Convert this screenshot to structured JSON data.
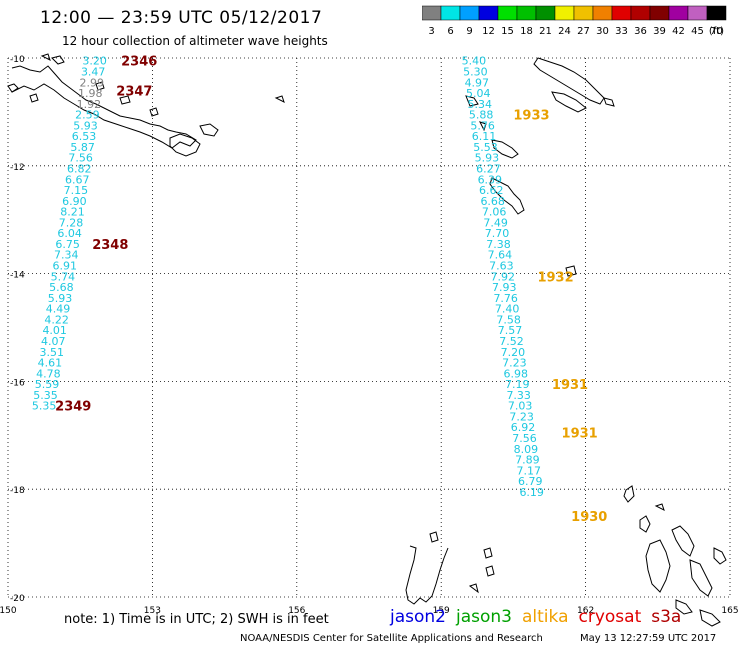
{
  "header": {
    "title": "12:00 — 23:59 UTC 05/12/2017",
    "subtitle": "12 hour collection of altimeter wave heights"
  },
  "legend": {
    "unit": "(ft)",
    "bins": [
      {
        "label": "3",
        "color": "#808080"
      },
      {
        "label": "6",
        "color": "#00e5e5"
      },
      {
        "label": "9",
        "color": "#00a0ff"
      },
      {
        "label": "12",
        "color": "#0000e0"
      },
      {
        "label": "15",
        "color": "#00e000"
      },
      {
        "label": "18",
        "color": "#00c000"
      },
      {
        "label": "21",
        "color": "#009000"
      },
      {
        "label": "24",
        "color": "#f0f000"
      },
      {
        "label": "27",
        "color": "#f0c000"
      },
      {
        "label": "30",
        "color": "#f08000"
      },
      {
        "label": "33",
        "color": "#e00000"
      },
      {
        "label": "36",
        "color": "#b00000"
      },
      {
        "label": "39",
        "color": "#800000"
      },
      {
        "label": "42",
        "color": "#a000a0"
      },
      {
        "label": "45",
        "color": "#c060c0"
      },
      {
        "label": "70",
        "color": "#000000"
      }
    ]
  },
  "map": {
    "lat_range": [
      -20,
      -10
    ],
    "lon_range": [
      150,
      165
    ],
    "lat_ticks": [
      "-10",
      "-12",
      "-14",
      "-16",
      "-18",
      "-20"
    ],
    "lon_ticks": [
      "150",
      "153",
      "156",
      "159",
      "162",
      "165"
    ],
    "colors": {
      "cyan": "#1ec8e0",
      "gray": "#808080",
      "time_dark": "#800000",
      "time_orange": "#e8a000"
    },
    "tracks": [
      {
        "id": "cryosat-track",
        "points": [
          {
            "lon": 151.8,
            "lat": -10.05,
            "v": "3.20",
            "c": "cyan"
          },
          {
            "lon": 151.77,
            "lat": -10.25,
            "v": "3.47",
            "c": "cyan"
          },
          {
            "lon": 151.74,
            "lat": -10.45,
            "v": "2.99",
            "c": "gray"
          },
          {
            "lon": 151.71,
            "lat": -10.65,
            "v": "1.98",
            "c": "gray"
          },
          {
            "lon": 151.68,
            "lat": -10.85,
            "v": "1.92",
            "c": "gray"
          },
          {
            "lon": 151.65,
            "lat": -11.05,
            "v": "2.59",
            "c": "cyan"
          },
          {
            "lon": 151.61,
            "lat": -11.25,
            "v": "5.93",
            "c": "cyan"
          },
          {
            "lon": 151.58,
            "lat": -11.45,
            "v": "6.53",
            "c": "cyan"
          },
          {
            "lon": 151.55,
            "lat": -11.65,
            "v": "5.87",
            "c": "cyan"
          },
          {
            "lon": 151.51,
            "lat": -11.85,
            "v": "7.56",
            "c": "cyan"
          },
          {
            "lon": 151.48,
            "lat": -12.05,
            "v": "6.82",
            "c": "cyan"
          },
          {
            "lon": 151.44,
            "lat": -12.25,
            "v": "6.67",
            "c": "cyan"
          },
          {
            "lon": 151.41,
            "lat": -12.45,
            "v": "7.15",
            "c": "cyan"
          },
          {
            "lon": 151.38,
            "lat": -12.65,
            "v": "6.90",
            "c": "cyan"
          },
          {
            "lon": 151.34,
            "lat": -12.85,
            "v": "8.21",
            "c": "cyan"
          },
          {
            "lon": 151.31,
            "lat": -13.05,
            "v": "7.28",
            "c": "cyan"
          },
          {
            "lon": 151.28,
            "lat": -13.25,
            "v": "6.04",
            "c": "cyan"
          },
          {
            "lon": 151.24,
            "lat": -13.45,
            "v": "6.75",
            "c": "cyan"
          },
          {
            "lon": 151.21,
            "lat": -13.65,
            "v": "7.34",
            "c": "cyan"
          },
          {
            "lon": 151.18,
            "lat": -13.85,
            "v": "6.91",
            "c": "cyan"
          },
          {
            "lon": 151.14,
            "lat": -14.05,
            "v": "5.74",
            "c": "cyan"
          },
          {
            "lon": 151.11,
            "lat": -14.25,
            "v": "5.68",
            "c": "cyan"
          },
          {
            "lon": 151.08,
            "lat": -14.45,
            "v": "5.93",
            "c": "cyan"
          },
          {
            "lon": 151.04,
            "lat": -14.65,
            "v": "4.49",
            "c": "cyan"
          },
          {
            "lon": 151.01,
            "lat": -14.85,
            "v": "4.22",
            "c": "cyan"
          },
          {
            "lon": 150.97,
            "lat": -15.05,
            "v": "4.01",
            "c": "cyan"
          },
          {
            "lon": 150.94,
            "lat": -15.25,
            "v": "4.07",
            "c": "cyan"
          },
          {
            "lon": 150.91,
            "lat": -15.45,
            "v": "3.51",
            "c": "cyan"
          },
          {
            "lon": 150.87,
            "lat": -15.65,
            "v": "4.61",
            "c": "cyan"
          },
          {
            "lon": 150.84,
            "lat": -15.85,
            "v": "4.78",
            "c": "cyan"
          },
          {
            "lon": 150.81,
            "lat": -16.05,
            "v": "5.59",
            "c": "cyan"
          },
          {
            "lon": 150.78,
            "lat": -16.25,
            "v": "5.35",
            "c": "cyan"
          },
          {
            "lon": 150.75,
            "lat": -16.45,
            "v": "5.35",
            "c": "cyan"
          }
        ]
      },
      {
        "id": "altika-track",
        "points": [
          {
            "lon": 159.68,
            "lat": -10.05,
            "v": "5.40",
            "c": "cyan"
          },
          {
            "lon": 159.71,
            "lat": -10.25,
            "v": "5.30",
            "c": "cyan"
          },
          {
            "lon": 159.74,
            "lat": -10.45,
            "v": "4.97",
            "c": "cyan"
          },
          {
            "lon": 159.77,
            "lat": -10.65,
            "v": "5.04",
            "c": "cyan"
          },
          {
            "lon": 159.8,
            "lat": -10.85,
            "v": "5.34",
            "c": "cyan"
          },
          {
            "lon": 159.83,
            "lat": -11.05,
            "v": "5.88",
            "c": "cyan"
          },
          {
            "lon": 159.86,
            "lat": -11.25,
            "v": "5.76",
            "c": "cyan"
          },
          {
            "lon": 159.89,
            "lat": -11.45,
            "v": "6.11",
            "c": "cyan"
          },
          {
            "lon": 159.92,
            "lat": -11.65,
            "v": "5.53",
            "c": "cyan"
          },
          {
            "lon": 159.95,
            "lat": -11.85,
            "v": "5.93",
            "c": "cyan"
          },
          {
            "lon": 159.98,
            "lat": -12.05,
            "v": "6.27",
            "c": "cyan"
          },
          {
            "lon": 160.01,
            "lat": -12.25,
            "v": "6.39",
            "c": "cyan"
          },
          {
            "lon": 160.04,
            "lat": -12.45,
            "v": "6.62",
            "c": "cyan"
          },
          {
            "lon": 160.07,
            "lat": -12.65,
            "v": "6.68",
            "c": "cyan"
          },
          {
            "lon": 160.1,
            "lat": -12.85,
            "v": "7.06",
            "c": "cyan"
          },
          {
            "lon": 160.13,
            "lat": -13.05,
            "v": "7.49",
            "c": "cyan"
          },
          {
            "lon": 160.16,
            "lat": -13.25,
            "v": "7.70",
            "c": "cyan"
          },
          {
            "lon": 160.19,
            "lat": -13.45,
            "v": "7.38",
            "c": "cyan"
          },
          {
            "lon": 160.22,
            "lat": -13.65,
            "v": "7.64",
            "c": "cyan"
          },
          {
            "lon": 160.25,
            "lat": -13.85,
            "v": "7.63",
            "c": "cyan"
          },
          {
            "lon": 160.28,
            "lat": -14.05,
            "v": "7.92",
            "c": "cyan"
          },
          {
            "lon": 160.31,
            "lat": -14.25,
            "v": "7.93",
            "c": "cyan"
          },
          {
            "lon": 160.34,
            "lat": -14.45,
            "v": "7.76",
            "c": "cyan"
          },
          {
            "lon": 160.37,
            "lat": -14.65,
            "v": "7.40",
            "c": "cyan"
          },
          {
            "lon": 160.4,
            "lat": -14.85,
            "v": "7.58",
            "c": "cyan"
          },
          {
            "lon": 160.43,
            "lat": -15.05,
            "v": "7.57",
            "c": "cyan"
          },
          {
            "lon": 160.46,
            "lat": -15.25,
            "v": "7.52",
            "c": "cyan"
          },
          {
            "lon": 160.49,
            "lat": -15.45,
            "v": "7.20",
            "c": "cyan"
          },
          {
            "lon": 160.52,
            "lat": -15.65,
            "v": "7.23",
            "c": "cyan"
          },
          {
            "lon": 160.55,
            "lat": -15.85,
            "v": "6.98",
            "c": "cyan"
          },
          {
            "lon": 160.58,
            "lat": -16.05,
            "v": "7.19",
            "c": "cyan"
          },
          {
            "lon": 160.61,
            "lat": -16.25,
            "v": "7.33",
            "c": "cyan"
          },
          {
            "lon": 160.64,
            "lat": -16.45,
            "v": "7.03",
            "c": "cyan"
          },
          {
            "lon": 160.67,
            "lat": -16.65,
            "v": "7.23",
            "c": "cyan"
          },
          {
            "lon": 160.7,
            "lat": -16.85,
            "v": "6.92",
            "c": "cyan"
          },
          {
            "lon": 160.73,
            "lat": -17.05,
            "v": "7.56",
            "c": "cyan"
          },
          {
            "lon": 160.76,
            "lat": -17.25,
            "v": "8.09",
            "c": "cyan"
          },
          {
            "lon": 160.79,
            "lat": -17.45,
            "v": "7.89",
            "c": "cyan"
          },
          {
            "lon": 160.82,
            "lat": -17.65,
            "v": "7.17",
            "c": "cyan"
          },
          {
            "lon": 160.85,
            "lat": -17.85,
            "v": "6.79",
            "c": "cyan"
          },
          {
            "lon": 160.88,
            "lat": -18.05,
            "v": "6.19",
            "c": "cyan"
          }
        ]
      }
    ],
    "time_marks": [
      {
        "lon": 152.35,
        "lat": -10.05,
        "t": "2346",
        "c": "time_dark"
      },
      {
        "lon": 152.25,
        "lat": -10.6,
        "t": "2347",
        "c": "time_dark"
      },
      {
        "lon": 151.75,
        "lat": -13.45,
        "t": "2348",
        "c": "time_dark"
      },
      {
        "lon": 150.98,
        "lat": -16.45,
        "t": "2349",
        "c": "time_dark"
      },
      {
        "lon": 160.5,
        "lat": -11.05,
        "t": "1933",
        "c": "time_orange"
      },
      {
        "lon": 161.0,
        "lat": -14.05,
        "t": "1932",
        "c": "time_orange"
      },
      {
        "lon": 161.3,
        "lat": -16.05,
        "t": "1931",
        "c": "time_orange"
      },
      {
        "lon": 161.5,
        "lat": -16.95,
        "t": "1931",
        "c": "time_orange"
      },
      {
        "lon": 161.7,
        "lat": -18.5,
        "t": "1930",
        "c": "time_orange"
      }
    ]
  },
  "footer": {
    "note": "note:  1) Time is in UTC;  2) SWH is in feet",
    "satellites": [
      {
        "name": "jason2",
        "color": "#0000e0"
      },
      {
        "name": "jason3",
        "color": "#00a000"
      },
      {
        "name": "altika",
        "color": "#f0a000"
      },
      {
        "name": "cryosat",
        "color": "#e00000"
      },
      {
        "name": "s3a",
        "color": "#b00000"
      }
    ],
    "credit": "NOAA/NESDIS Center for Satellite Applications and Research",
    "timestamp": "May 13 12:27:59 UTC 2017"
  }
}
